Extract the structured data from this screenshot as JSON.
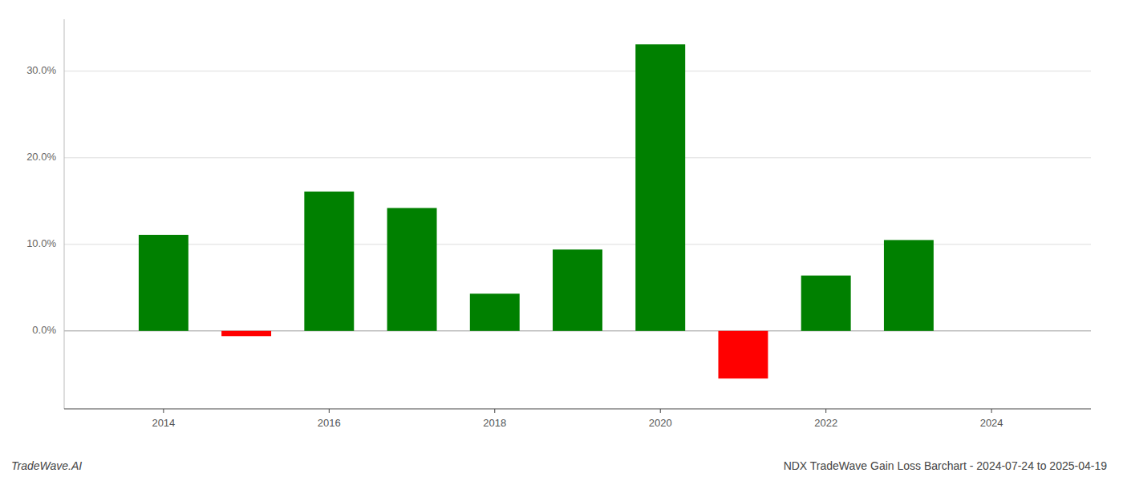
{
  "chart_data": {
    "type": "bar",
    "title": "NDX TradeWave Gain Loss Barchart - 2024-07-24 to 2025-04-19",
    "annotations": [
      "TradeWave.AI"
    ],
    "x": [
      2014,
      2015,
      2016,
      2017,
      2018,
      2019,
      2020,
      2021,
      2022,
      2023
    ],
    "values": [
      11.1,
      -0.6,
      16.1,
      14.2,
      4.3,
      9.4,
      33.1,
      -5.5,
      6.4,
      10.5
    ],
    "colors": [
      "#008000",
      "#ff0000",
      "#008000",
      "#008000",
      "#008000",
      "#008000",
      "#008000",
      "#ff0000",
      "#008000",
      "#008000"
    ],
    "xlim": [
      2012.8,
      2025.2
    ],
    "xticks": [
      2014,
      2016,
      2018,
      2020,
      2022,
      2024
    ],
    "ylim": [
      -9,
      36
    ],
    "yticks": [
      {
        "value": 0.0,
        "label": "0.0%"
      },
      {
        "value": 10.0,
        "label": "10.0%"
      },
      {
        "value": 20.0,
        "label": "20.0%"
      },
      {
        "value": 30.0,
        "label": "30.0%"
      }
    ],
    "grid": true
  }
}
